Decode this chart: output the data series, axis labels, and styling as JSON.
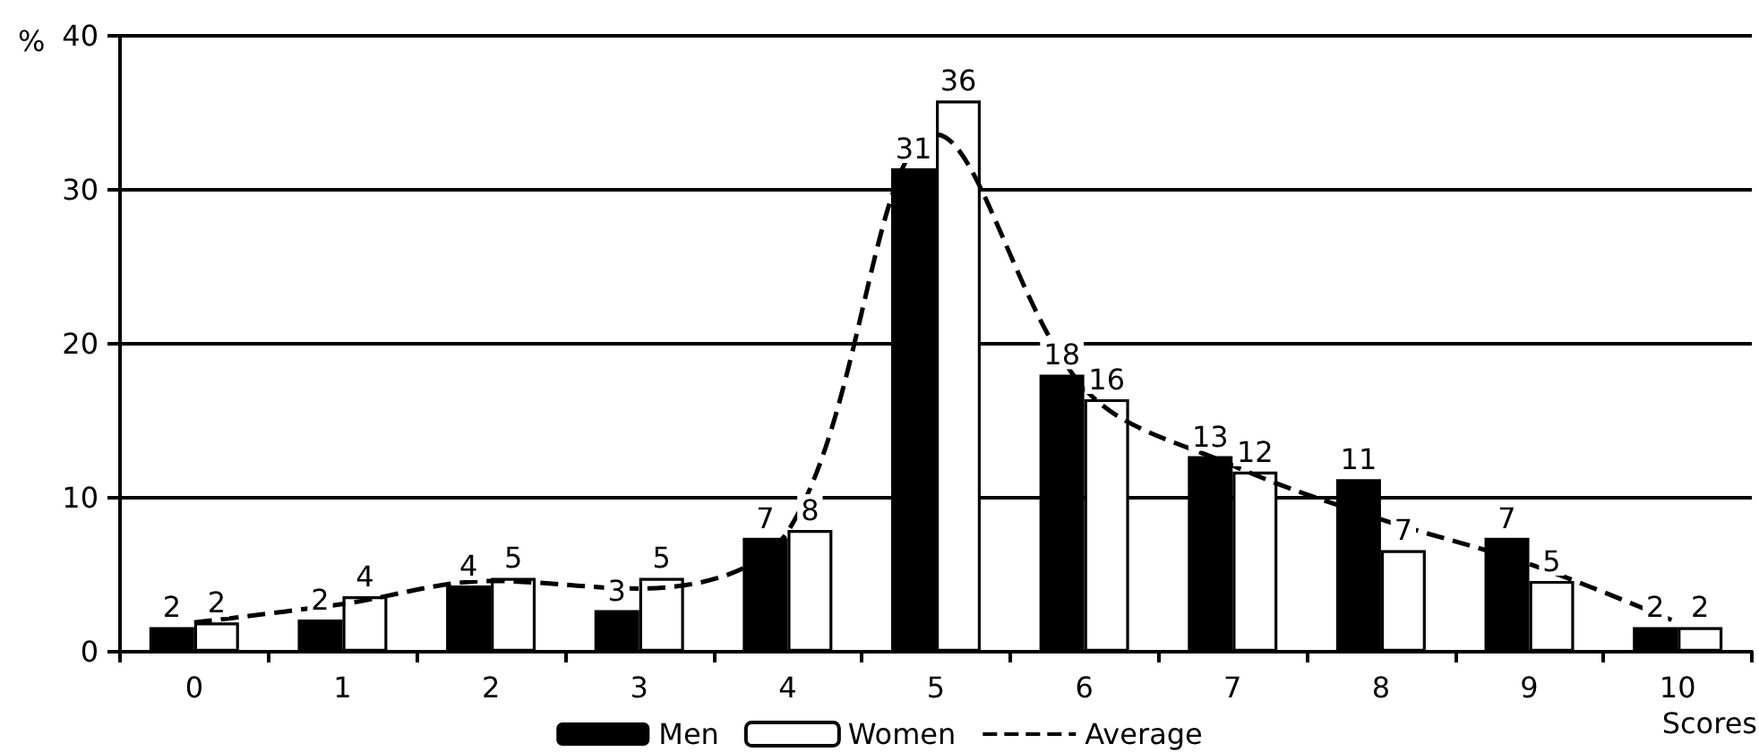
{
  "chart_data": {
    "type": "bar",
    "xlabel": "Scores",
    "ylabel": "%",
    "categories": [
      "0",
      "1",
      "2",
      "3",
      "4",
      "5",
      "6",
      "7",
      "8",
      "9",
      "10"
    ],
    "ylim": [
      0,
      40
    ],
    "yticks": [
      0,
      10,
      20,
      30,
      40
    ],
    "grid": "y",
    "legend": "bottom",
    "series": [
      {
        "name": "Men",
        "color": "#000000",
        "values": [
          1.6,
          2.1,
          4.3,
          2.7,
          7.4,
          31.4,
          18.0,
          12.7,
          11.2,
          7.4,
          1.6
        ],
        "value_labels": [
          "2",
          "2",
          "4",
          "3",
          "7",
          "31",
          "18",
          "13",
          "11",
          "7",
          "2"
        ]
      },
      {
        "name": "Women",
        "color": "#ffffff",
        "values": [
          1.9,
          3.6,
          4.8,
          4.8,
          7.9,
          35.8,
          16.4,
          11.7,
          6.6,
          4.6,
          1.6
        ],
        "value_labels": [
          "2",
          "4",
          "5",
          "5",
          "8",
          "36",
          "16",
          "12",
          "7",
          "5",
          "2"
        ]
      },
      {
        "name": "Average",
        "type": "line",
        "color": "#000000",
        "line_style": "dashed",
        "marker": "none",
        "values": [
          1.9,
          3.1,
          4.6,
          4.1,
          7.8,
          33.6,
          17.1,
          12.1,
          8.6,
          5.7,
          1.9
        ]
      }
    ]
  }
}
